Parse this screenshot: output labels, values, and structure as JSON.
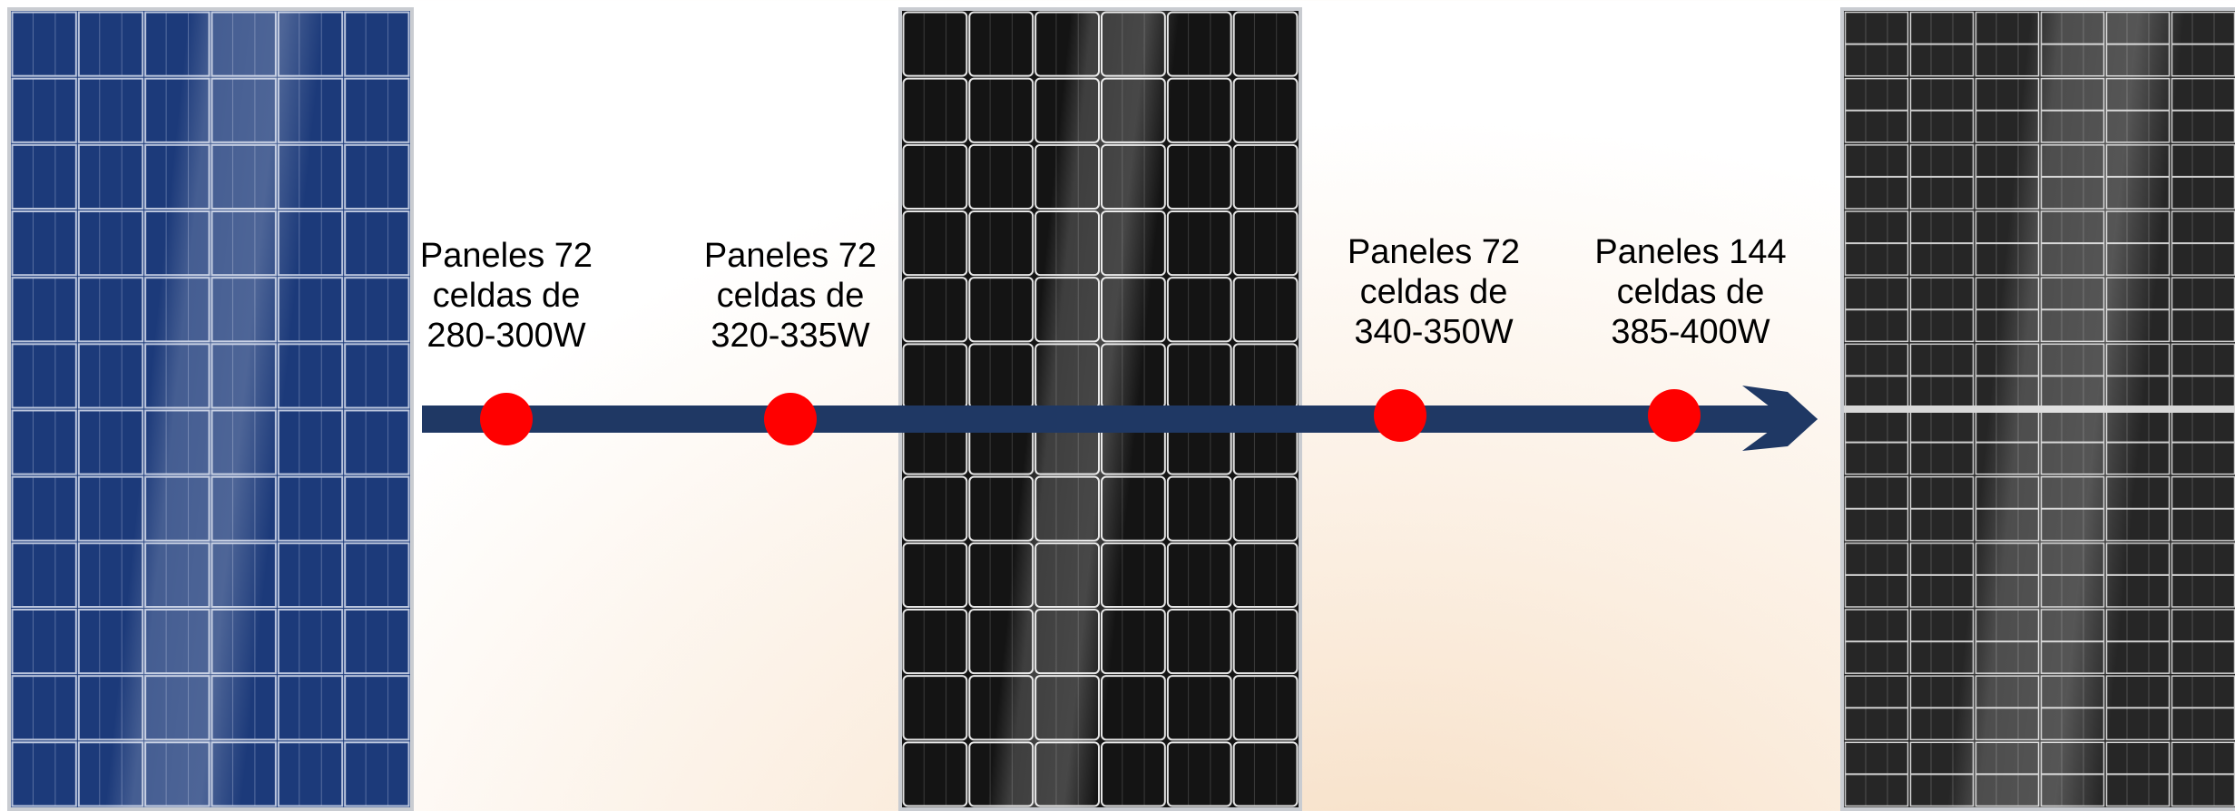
{
  "colors": {
    "arrow": "#1f3864",
    "marker": "#ff0000",
    "poly_panel": "#1c3a7a",
    "mono_panel": "#141414",
    "half_cut_panel": "#262626"
  },
  "panels": [
    {
      "name": "polycrystalline-panel",
      "color": "#1c3a7a",
      "cols": 6,
      "rows": 12
    },
    {
      "name": "monocrystalline-panel",
      "color": "#141414",
      "cols": 6,
      "rows": 12
    },
    {
      "name": "half-cut-panel",
      "color": "#262626",
      "cols": 6,
      "rows": 12
    }
  ],
  "milestones": [
    {
      "line1": "Paneles 72",
      "line2": "celdas de",
      "line3": "280-300W"
    },
    {
      "line1": "Paneles 72",
      "line2": "celdas de",
      "line3": "320-335W"
    },
    {
      "line1": "Paneles 72",
      "line2": "celdas de",
      "line3": "340-350W"
    },
    {
      "line1": "Paneles 144",
      "line2": "celdas de",
      "line3": "385-400W"
    }
  ]
}
